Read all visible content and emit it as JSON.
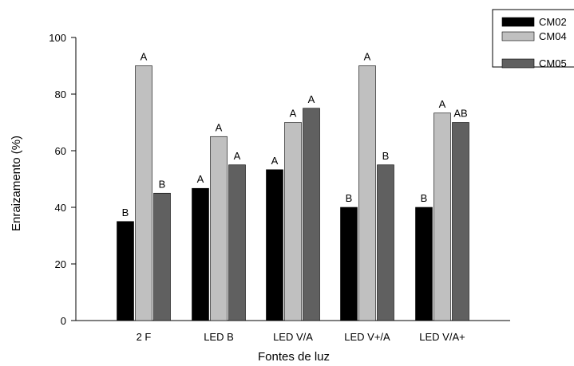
{
  "chart_data": {
    "type": "bar",
    "xlabel": "Fontes de luz",
    "ylabel": "Enraizamento (%)",
    "ylim": [
      0,
      100
    ],
    "yticks": [
      0,
      20,
      40,
      60,
      80,
      100
    ],
    "grid": false,
    "legend_position": "top-right",
    "categories": [
      "2 F",
      "LED B",
      "LED V/A",
      "LED V+/A",
      "LED V/A+"
    ],
    "series": [
      {
        "name": "CM02",
        "color": "#000000",
        "values": [
          35,
          46.7,
          53.3,
          40,
          40
        ],
        "labels": [
          "B",
          "A",
          "A",
          "B",
          "B"
        ]
      },
      {
        "name": "CM04",
        "color": "#c0c0c0",
        "values": [
          90,
          65,
          70,
          90,
          73.3
        ],
        "labels": [
          "A",
          "A",
          "A",
          "A",
          "A"
        ]
      },
      {
        "name": "CM05",
        "color": "#606060",
        "values": [
          45,
          55,
          75,
          55,
          70
        ],
        "labels": [
          "B",
          "A",
          "A",
          "B",
          "AB"
        ]
      }
    ]
  }
}
